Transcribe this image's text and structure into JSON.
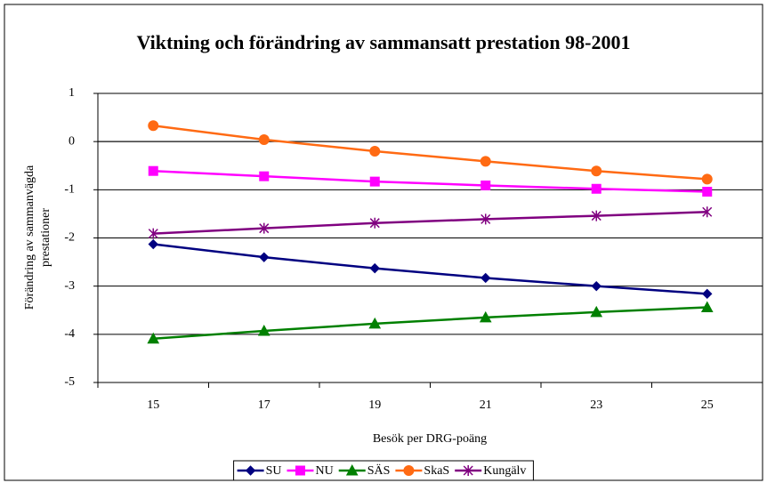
{
  "chart_data": {
    "type": "line",
    "title": "Viktning och förändring av sammansatt prestation 98-2001",
    "x_label": "Besök per DRG-poäng",
    "y_label": [
      "Förändring av sammanvägda",
      "prestationer"
    ],
    "categories": [
      "15",
      "17",
      "19",
      "21",
      "23",
      "25"
    ],
    "series": [
      {
        "name": "SU",
        "color": "#000080",
        "marker": "diamond",
        "values": [
          -2.13,
          -2.4,
          -2.63,
          -2.83,
          -3.0,
          -3.16
        ]
      },
      {
        "name": "NU",
        "color": "#ff00ff",
        "marker": "square",
        "values": [
          -0.61,
          -0.72,
          -0.83,
          -0.91,
          -0.98,
          -1.04
        ]
      },
      {
        "name": "SÄS",
        "color": "#008000",
        "marker": "triangle",
        "values": [
          -4.09,
          -3.93,
          -3.78,
          -3.65,
          -3.54,
          -3.44
        ]
      },
      {
        "name": "SkaS",
        "color": "#ff6a13",
        "marker": "circle",
        "values": [
          0.33,
          0.04,
          -0.2,
          -0.41,
          -0.61,
          -0.78
        ]
      },
      {
        "name": "Kungälv",
        "color": "#800080",
        "marker": "asterisk",
        "values": [
          -1.91,
          -1.8,
          -1.69,
          -1.61,
          -1.54,
          -1.46
        ]
      }
    ],
    "ylim": [
      -5,
      1
    ],
    "yticks": [
      -5,
      -4,
      -3,
      -2,
      -1,
      0,
      1
    ],
    "grid": true,
    "legend": "bottom"
  }
}
